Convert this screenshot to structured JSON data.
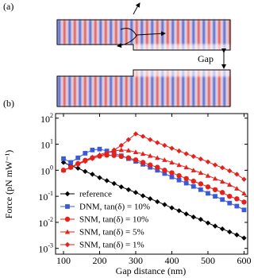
{
  "figure_a": {
    "panel_label": "(a)",
    "gap_label": "Gap"
  },
  "chart_data": {
    "type": "line",
    "panel_label": "(b)",
    "x_label": "Gap distance (nm)",
    "y_label": "Force (pN mW⁻¹)",
    "log_y": true,
    "xlim": [
      78,
      610
    ],
    "xticks": [
      100,
      200,
      300,
      400,
      500,
      600
    ],
    "ylim": [
      0.0006,
      150
    ],
    "yticks": [
      {
        "value": 0.001,
        "label": "10^-3"
      },
      {
        "value": 0.01,
        "label": "10^-2"
      },
      {
        "value": 0.1,
        "label": "10^-1"
      },
      {
        "value": 1,
        "label": "10^0"
      },
      {
        "value": 10,
        "label": "10^1"
      },
      {
        "value": 100,
        "label": "10^2"
      }
    ],
    "legend": "lower left",
    "x": [
      100,
      120,
      140,
      160,
      180,
      200,
      220,
      240,
      260,
      280,
      300,
      320,
      340,
      360,
      380,
      400,
      420,
      440,
      460,
      480,
      500,
      520,
      540,
      560,
      580,
      600
    ],
    "series": [
      {
        "name": "reference",
        "color": "#000000",
        "marker": "diamond",
        "values": [
          2.0,
          1.5,
          1.2,
          0.9,
          0.7,
          0.52,
          0.4,
          0.31,
          0.23,
          0.18,
          0.14,
          0.105,
          0.081,
          0.062,
          0.048,
          0.036,
          0.028,
          0.021,
          0.016,
          0.013,
          0.0095,
          0.0072,
          0.0056,
          0.0043,
          0.0033,
          0.0025
        ]
      },
      {
        "name": "DNM, tan(δ) = 10%",
        "color": "#3a5ad9",
        "marker": "square",
        "values": [
          2.8,
          2.0,
          3.0,
          4.5,
          6.0,
          6.5,
          5.5,
          4.5,
          3.6,
          2.8,
          2.2,
          1.7,
          1.3,
          1.0,
          0.75,
          0.55,
          0.42,
          0.32,
          0.24,
          0.18,
          0.13,
          0.1,
          0.075,
          0.055,
          0.042,
          0.03
        ]
      },
      {
        "name": "SNM, tan(δ) = 10%",
        "color": "#e8201a",
        "marker": "circle",
        "values": [
          1.0,
          1.3,
          1.8,
          2.4,
          3.0,
          3.5,
          3.8,
          3.7,
          3.4,
          3.0,
          2.5,
          2.0,
          1.6,
          1.3,
          1.0,
          0.8,
          0.62,
          0.48,
          0.38,
          0.3,
          0.23,
          0.18,
          0.14,
          0.1,
          0.08,
          0.06
        ]
      },
      {
        "name": "SNM, tan(δ) = 5%",
        "color": "#e8201a",
        "marker": "triangle",
        "values": [
          1.0,
          1.3,
          1.8,
          2.4,
          3.2,
          4.0,
          4.8,
          5.5,
          6.0,
          5.8,
          5.0,
          4.3,
          3.6,
          3.0,
          2.5,
          2.0,
          1.6,
          1.3,
          1.0,
          0.8,
          0.62,
          0.48,
          0.37,
          0.28,
          0.2,
          0.13
        ]
      },
      {
        "name": "SNM, tan(δ) = 1%",
        "color": "#e8201a",
        "marker": "diamond",
        "values": [
          1.0,
          1.3,
          1.7,
          2.2,
          2.8,
          3.5,
          4.5,
          6,
          9,
          15,
          25,
          20,
          15,
          11.5,
          9,
          7,
          5.5,
          4.3,
          3.4,
          2.7,
          2.1,
          1.6,
          1.25,
          0.95,
          0.7,
          0.45
        ]
      }
    ]
  }
}
